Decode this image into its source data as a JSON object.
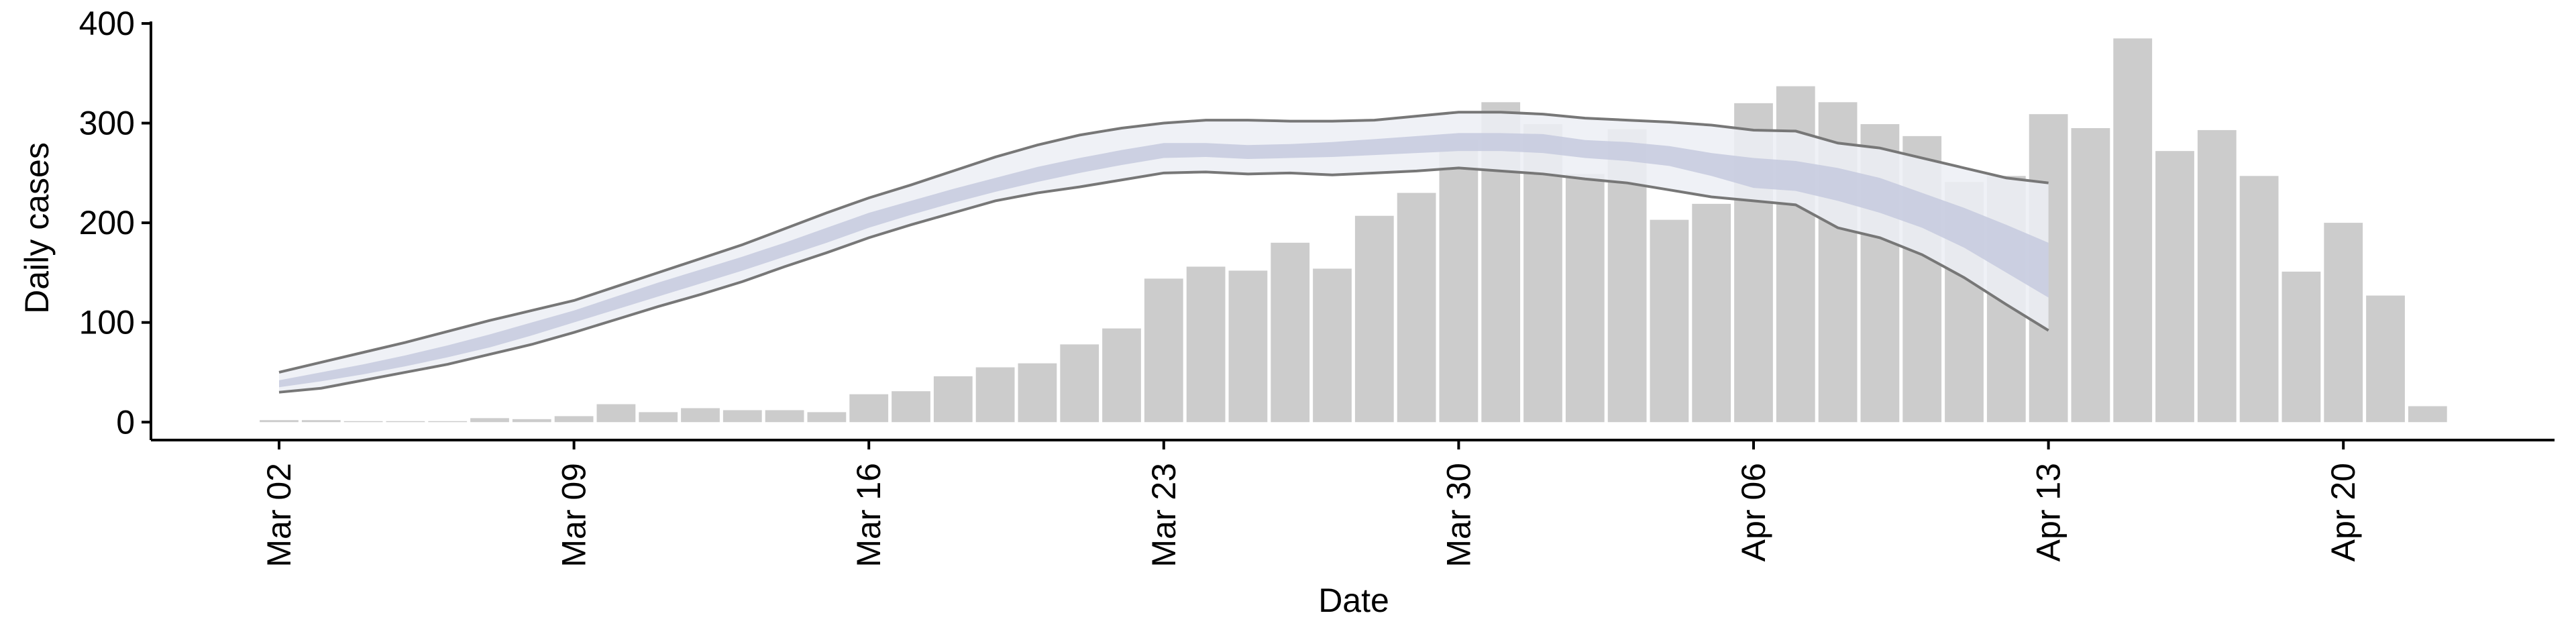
{
  "chart_data": {
    "type": "bar",
    "xlabel": "Date",
    "ylabel": "Daily cases",
    "categories": [
      "Mar 02",
      null,
      null,
      null,
      null,
      null,
      null,
      "Mar 09",
      null,
      null,
      null,
      null,
      null,
      null,
      "Mar 16",
      null,
      null,
      null,
      null,
      null,
      null,
      "Mar 23",
      null,
      null,
      null,
      null,
      null,
      null,
      "Mar 30",
      null,
      null,
      null,
      null,
      null,
      null,
      "Apr 06",
      null,
      null,
      null,
      null,
      null,
      null,
      "Apr 13",
      null,
      null,
      null,
      null,
      null,
      null,
      "Apr 20",
      null,
      null
    ],
    "values": [
      2,
      2,
      1,
      1,
      1,
      4,
      3,
      6,
      18,
      10,
      14,
      12,
      12,
      10,
      28,
      31,
      46,
      55,
      59,
      78,
      94,
      144,
      156,
      152,
      180,
      154,
      207,
      230,
      284,
      321,
      299,
      249,
      294,
      203,
      219,
      320,
      337,
      321,
      299,
      287,
      241,
      247,
      309,
      295,
      385,
      272,
      293,
      247,
      151,
      200,
      127,
      16
    ],
    "color": "#cccccc",
    "band_outer": {
      "color": "#eceef4",
      "line_color": "#777777",
      "upper": [
        50,
        60,
        70,
        80,
        91,
        102,
        112,
        122,
        136,
        150,
        164,
        178,
        194,
        210,
        225,
        238,
        252,
        266,
        278,
        288,
        295,
        300,
        303,
        303,
        302,
        302,
        303,
        307,
        311,
        311,
        309,
        305,
        303,
        301,
        298,
        293,
        292,
        280,
        275,
        265,
        255,
        245,
        240,
        null,
        null,
        null,
        null,
        null,
        null,
        null,
        null,
        null
      ],
      "lower": [
        30,
        34,
        42,
        50,
        58,
        68,
        78,
        90,
        103,
        116,
        128,
        141,
        156,
        170,
        185,
        198,
        210,
        222,
        230,
        236,
        243,
        250,
        251,
        249,
        250,
        248,
        250,
        252,
        255,
        252,
        249,
        244,
        240,
        233,
        226,
        222,
        218,
        195,
        185,
        168,
        145,
        118,
        92,
        null,
        null,
        null,
        null,
        null,
        null,
        null,
        null,
        null
      ]
    },
    "band_inner": {
      "color": "#c5cade",
      "upper": [
        42,
        50,
        58,
        67,
        77,
        88,
        100,
        112,
        126,
        140,
        153,
        166,
        180,
        195,
        210,
        222,
        234,
        245,
        256,
        265,
        273,
        280,
        280,
        278,
        279,
        281,
        284,
        287,
        290,
        290,
        289,
        283,
        281,
        277,
        270,
        265,
        262,
        255,
        245,
        230,
        215,
        198,
        180,
        null,
        null,
        null,
        null,
        null,
        null,
        null,
        null,
        null
      ],
      "lower": [
        35,
        41,
        48,
        56,
        65,
        75,
        87,
        100,
        113,
        126,
        139,
        152,
        166,
        180,
        195,
        208,
        220,
        231,
        241,
        250,
        258,
        265,
        266,
        264,
        265,
        266,
        268,
        270,
        272,
        272,
        270,
        265,
        262,
        257,
        247,
        235,
        232,
        222,
        210,
        195,
        175,
        150,
        125,
        null,
        null,
        null,
        null,
        null,
        null,
        null,
        null,
        null
      ]
    },
    "ylim": [
      -18,
      402
    ],
    "yticks": [
      0,
      100,
      200,
      300,
      400
    ],
    "grid": false
  }
}
